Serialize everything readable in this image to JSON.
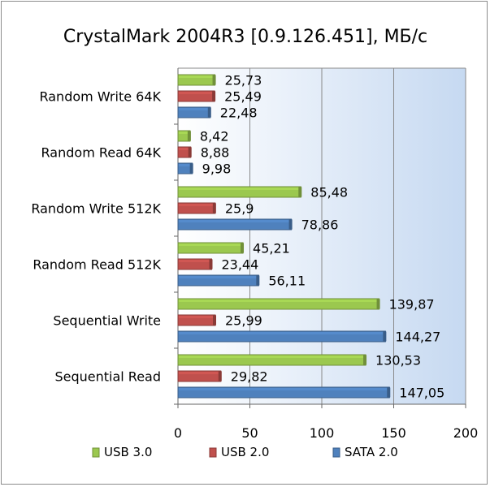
{
  "chart_data": {
    "type": "bar",
    "orientation": "horizontal",
    "title": "CrystalMark 2004R3 [0.9.126.451], МБ/с",
    "categories": [
      "Random Write 64K",
      "Random Read 64K",
      "Random Write 512K",
      "Random Read 512K",
      "Sequential Write",
      "Sequential Read"
    ],
    "series": [
      {
        "name": "USB 3.0",
        "color": "#9bc84f",
        "values": [
          25.73,
          8.42,
          85.48,
          45.21,
          139.87,
          130.53
        ],
        "labels": [
          "25,73",
          "8,42",
          "85,48",
          "45,21",
          "139,87",
          "130,53"
        ]
      },
      {
        "name": "USB 2.0",
        "color": "#c0504d",
        "values": [
          25.49,
          8.88,
          25.9,
          23.44,
          25.99,
          29.82
        ],
        "labels": [
          "25,49",
          "8,88",
          "25,9",
          "23,44",
          "25,99",
          "29,82"
        ]
      },
      {
        "name": "SATA 2.0",
        "color": "#4f81bd",
        "values": [
          22.48,
          9.98,
          78.86,
          56.11,
          144.27,
          147.05
        ],
        "labels": [
          "22,48",
          "9,98",
          "78,86",
          "56,11",
          "144,27",
          "147,05"
        ]
      }
    ],
    "xlim": [
      0,
      200
    ],
    "xticks": [
      0,
      50,
      100,
      150,
      200
    ],
    "grid": true,
    "legend_position": "bottom",
    "plot_background": [
      "#c6d9f1",
      "#ffffff"
    ]
  }
}
